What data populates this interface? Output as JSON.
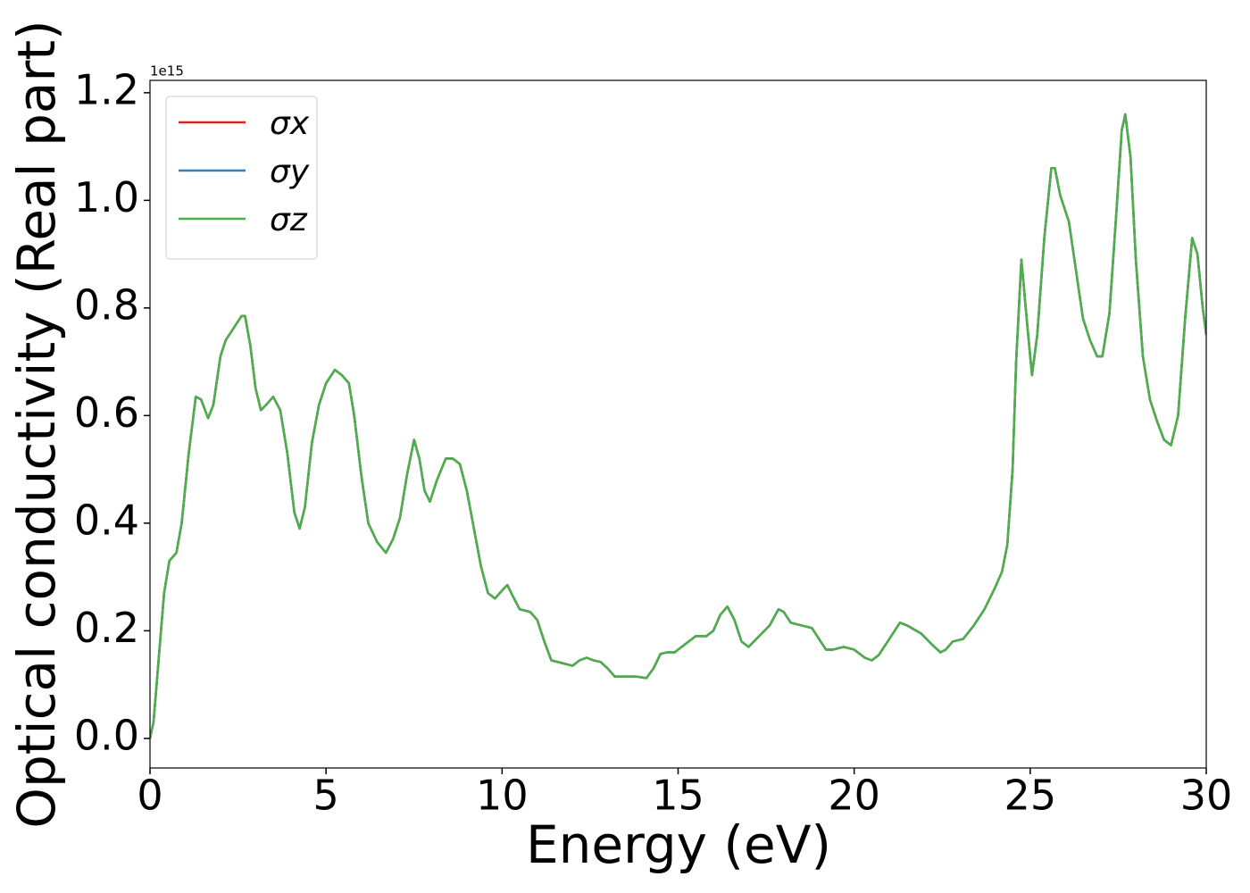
{
  "chart_data": {
    "type": "line",
    "xlabel": "Energy (eV)",
    "ylabel": "Optical conductivity (Real part)",
    "y_offset_label": "1e15",
    "x": [
      0,
      0.1,
      0.25,
      0.4,
      0.55,
      0.75,
      0.9,
      1.1,
      1.3,
      1.45,
      1.65,
      1.8,
      2.0,
      2.15,
      2.3,
      2.45,
      2.6,
      2.7,
      2.85,
      3.0,
      3.15,
      3.3,
      3.5,
      3.7,
      3.9,
      4.1,
      4.25,
      4.4,
      4.6,
      4.8,
      5.0,
      5.25,
      5.45,
      5.65,
      5.8,
      6.0,
      6.2,
      6.45,
      6.7,
      6.9,
      7.1,
      7.3,
      7.5,
      7.65,
      7.8,
      7.95,
      8.15,
      8.4,
      8.6,
      8.8,
      9.0,
      9.2,
      9.4,
      9.6,
      9.8,
      10.0,
      10.15,
      10.3,
      10.5,
      10.8,
      11.0,
      11.2,
      11.4,
      11.7,
      12.0,
      12.2,
      12.4,
      12.6,
      12.8,
      13.0,
      13.2,
      13.5,
      13.8,
      14.1,
      14.3,
      14.5,
      14.7,
      14.9,
      15.2,
      15.5,
      15.8,
      16.0,
      16.2,
      16.4,
      16.6,
      16.8,
      17.0,
      17.3,
      17.6,
      17.85,
      18.0,
      18.2,
      18.5,
      18.8,
      19.0,
      19.2,
      19.4,
      19.7,
      20.0,
      20.3,
      20.5,
      20.7,
      21.0,
      21.3,
      21.5,
      21.9,
      22.2,
      22.45,
      22.6,
      22.8,
      23.1,
      23.4,
      23.7,
      24.0,
      24.2,
      24.35,
      24.5,
      24.6,
      24.75,
      24.9,
      25.05,
      25.2,
      25.4,
      25.6,
      25.7,
      25.85,
      26.1,
      26.3,
      26.5,
      26.7,
      26.9,
      27.05,
      27.25,
      27.45,
      27.6,
      27.7,
      27.85,
      28.0,
      28.2,
      28.4,
      28.6,
      28.8,
      29.0,
      29.2,
      29.4,
      29.6,
      29.75,
      29.9,
      30.0
    ],
    "series": [
      {
        "name": "σx",
        "color": "#d62728",
        "values": [
          0,
          0.03,
          0.15,
          0.27,
          0.33,
          0.345,
          0.4,
          0.53,
          0.635,
          0.63,
          0.595,
          0.62,
          0.71,
          0.74,
          0.755,
          0.77,
          0.785,
          0.785,
          0.73,
          0.65,
          0.61,
          0.62,
          0.635,
          0.61,
          0.53,
          0.42,
          0.39,
          0.43,
          0.55,
          0.62,
          0.66,
          0.685,
          0.675,
          0.66,
          0.6,
          0.49,
          0.4,
          0.365,
          0.345,
          0.37,
          0.41,
          0.49,
          0.555,
          0.52,
          0.46,
          0.44,
          0.48,
          0.52,
          0.52,
          0.51,
          0.46,
          0.39,
          0.32,
          0.27,
          0.26,
          0.275,
          0.285,
          0.265,
          0.24,
          0.235,
          0.22,
          0.18,
          0.145,
          0.14,
          0.135,
          0.145,
          0.15,
          0.145,
          0.142,
          0.13,
          0.115,
          0.115,
          0.115,
          0.112,
          0.13,
          0.157,
          0.16,
          0.16,
          0.175,
          0.19,
          0.19,
          0.2,
          0.23,
          0.245,
          0.22,
          0.18,
          0.17,
          0.19,
          0.21,
          0.24,
          0.235,
          0.215,
          0.21,
          0.205,
          0.185,
          0.165,
          0.165,
          0.17,
          0.165,
          0.15,
          0.145,
          0.155,
          0.185,
          0.215,
          0.21,
          0.195,
          0.175,
          0.16,
          0.165,
          0.18,
          0.185,
          0.21,
          0.24,
          0.28,
          0.31,
          0.36,
          0.5,
          0.7,
          0.89,
          0.78,
          0.675,
          0.75,
          0.93,
          1.06,
          1.06,
          1.01,
          0.96,
          0.87,
          0.78,
          0.74,
          0.71,
          0.71,
          0.79,
          0.98,
          1.13,
          1.16,
          1.08,
          0.89,
          0.71,
          0.63,
          0.59,
          0.555,
          0.545,
          0.6,
          0.78,
          0.93,
          0.9,
          0.8,
          0.75
        ]
      },
      {
        "name": "σy",
        "color": "#377eb8",
        "values": [
          0,
          0.03,
          0.15,
          0.27,
          0.33,
          0.345,
          0.4,
          0.53,
          0.635,
          0.63,
          0.595,
          0.62,
          0.71,
          0.74,
          0.755,
          0.77,
          0.785,
          0.785,
          0.73,
          0.65,
          0.61,
          0.62,
          0.635,
          0.61,
          0.53,
          0.42,
          0.39,
          0.43,
          0.55,
          0.62,
          0.66,
          0.685,
          0.675,
          0.66,
          0.6,
          0.49,
          0.4,
          0.365,
          0.345,
          0.37,
          0.41,
          0.49,
          0.555,
          0.52,
          0.46,
          0.44,
          0.48,
          0.52,
          0.52,
          0.51,
          0.46,
          0.39,
          0.32,
          0.27,
          0.26,
          0.275,
          0.285,
          0.265,
          0.24,
          0.235,
          0.22,
          0.18,
          0.145,
          0.14,
          0.135,
          0.145,
          0.15,
          0.145,
          0.142,
          0.13,
          0.115,
          0.115,
          0.115,
          0.112,
          0.13,
          0.157,
          0.16,
          0.16,
          0.175,
          0.19,
          0.19,
          0.2,
          0.23,
          0.245,
          0.22,
          0.18,
          0.17,
          0.19,
          0.21,
          0.24,
          0.235,
          0.215,
          0.21,
          0.205,
          0.185,
          0.165,
          0.165,
          0.17,
          0.165,
          0.15,
          0.145,
          0.155,
          0.185,
          0.215,
          0.21,
          0.195,
          0.175,
          0.16,
          0.165,
          0.18,
          0.185,
          0.21,
          0.24,
          0.28,
          0.31,
          0.36,
          0.5,
          0.7,
          0.89,
          0.78,
          0.675,
          0.75,
          0.93,
          1.06,
          1.06,
          1.01,
          0.96,
          0.87,
          0.78,
          0.74,
          0.71,
          0.71,
          0.79,
          0.98,
          1.13,
          1.16,
          1.08,
          0.89,
          0.71,
          0.63,
          0.59,
          0.555,
          0.545,
          0.6,
          0.78,
          0.93,
          0.9,
          0.8,
          0.75
        ]
      },
      {
        "name": "σz",
        "color": "#4daf4a",
        "values": [
          0,
          0.03,
          0.15,
          0.27,
          0.33,
          0.345,
          0.4,
          0.53,
          0.635,
          0.63,
          0.595,
          0.62,
          0.71,
          0.74,
          0.755,
          0.77,
          0.785,
          0.785,
          0.73,
          0.65,
          0.61,
          0.62,
          0.635,
          0.61,
          0.53,
          0.42,
          0.39,
          0.43,
          0.55,
          0.62,
          0.66,
          0.685,
          0.675,
          0.66,
          0.6,
          0.49,
          0.4,
          0.365,
          0.345,
          0.37,
          0.41,
          0.49,
          0.555,
          0.52,
          0.46,
          0.44,
          0.48,
          0.52,
          0.52,
          0.51,
          0.46,
          0.39,
          0.32,
          0.27,
          0.26,
          0.275,
          0.285,
          0.265,
          0.24,
          0.235,
          0.22,
          0.18,
          0.145,
          0.14,
          0.135,
          0.145,
          0.15,
          0.145,
          0.142,
          0.13,
          0.115,
          0.115,
          0.115,
          0.112,
          0.13,
          0.157,
          0.16,
          0.16,
          0.175,
          0.19,
          0.19,
          0.2,
          0.23,
          0.245,
          0.22,
          0.18,
          0.17,
          0.19,
          0.21,
          0.24,
          0.235,
          0.215,
          0.21,
          0.205,
          0.185,
          0.165,
          0.165,
          0.17,
          0.165,
          0.15,
          0.145,
          0.155,
          0.185,
          0.215,
          0.21,
          0.195,
          0.175,
          0.16,
          0.165,
          0.18,
          0.185,
          0.21,
          0.24,
          0.28,
          0.31,
          0.36,
          0.5,
          0.7,
          0.89,
          0.78,
          0.675,
          0.75,
          0.93,
          1.06,
          1.06,
          1.01,
          0.96,
          0.87,
          0.78,
          0.74,
          0.71,
          0.71,
          0.79,
          0.98,
          1.13,
          1.16,
          1.08,
          0.89,
          0.71,
          0.63,
          0.59,
          0.555,
          0.545,
          0.6,
          0.78,
          0.93,
          0.9,
          0.8,
          0.75
        ]
      }
    ],
    "xlim": [
      0,
      30
    ],
    "xticks": [
      0,
      5,
      10,
      15,
      20,
      25,
      30
    ],
    "ylim": [
      -0.055,
      1.223
    ],
    "yticks": [
      {
        "value": 0,
        "label": "0.0"
      },
      0.2,
      0.4,
      0.6,
      0.8,
      {
        "value": 1,
        "label": "1.0"
      },
      1.2
    ],
    "grid": false,
    "legend": "upper left"
  }
}
